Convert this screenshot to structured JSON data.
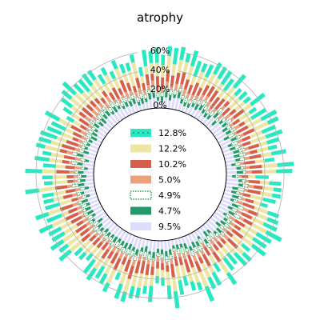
{
  "chart_data": {
    "type": "bar",
    "subtype": "radial-stacked-bar",
    "title": "atrophy",
    "radial_axis": {
      "ticks": [
        "0%",
        "20%",
        "40%",
        "60%"
      ],
      "tick_values": [
        0,
        20,
        40,
        60
      ],
      "range": [
        0,
        60
      ],
      "grid": true
    },
    "num_bars": 120,
    "legend_position": "center",
    "series": [
      {
        "label": "12.8%",
        "color": "#27e8c0",
        "pattern": "dotted",
        "mean": 12.8
      },
      {
        "label": "12.2%",
        "color": "#ede6a2",
        "pattern": "solid",
        "mean": 12.2
      },
      {
        "label": "10.2%",
        "color": "#d4604c",
        "pattern": "solid",
        "mean": 10.2
      },
      {
        "label": "5.0%",
        "color": "#eba07e",
        "pattern": "solid",
        "mean": 5.0
      },
      {
        "label": "4.9%",
        "color": "#2e9b55",
        "pattern": "dotted-hollow",
        "mean": 4.9
      },
      {
        "label": "4.7%",
        "color": "#239a6a",
        "pattern": "solid",
        "mean": 4.7
      },
      {
        "label": "9.5%",
        "color": "#dddcfa",
        "pattern": "solid",
        "mean": 9.5
      }
    ]
  }
}
